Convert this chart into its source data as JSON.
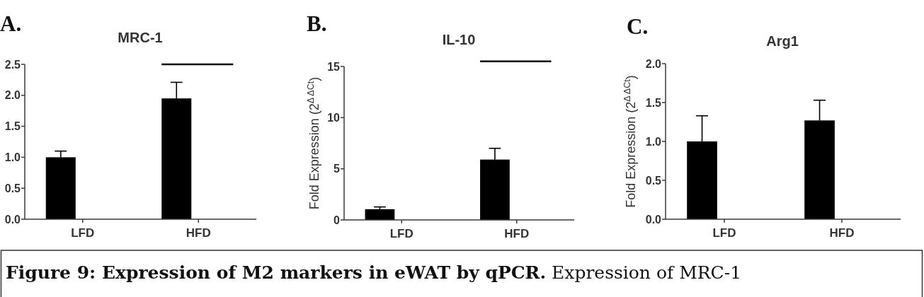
{
  "chart_data": [
    {
      "type": "bar",
      "title": "MRC-1",
      "annotations": [
        "A."
      ],
      "categories": [
        "LFD",
        "HFD"
      ],
      "values": [
        1.0,
        1.95
      ],
      "errors": [
        [
          1.0,
          1.1
        ],
        [
          1.95,
          2.21
        ]
      ],
      "color": "#000000",
      "ylim": [
        0,
        2.5
      ],
      "yticks": [
        {
          "value": 0,
          "label": "0.0"
        },
        {
          "value": 0.5,
          "label": "0.5"
        },
        {
          "value": 1,
          "label": "1.0"
        },
        {
          "value": 1.5,
          "label": "1.5"
        },
        {
          "value": 2,
          "label": "2.0"
        },
        {
          "value": 2.5,
          "label": "2.5"
        }
      ],
      "ref_lines": [
        {
          "axis": "y",
          "value": 2.5,
          "color": "#000000"
        }
      ]
    },
    {
      "type": "bar",
      "title": "IL-10",
      "annotations": [
        "B."
      ],
      "ylabel": "Fold Expression (2$^{Δ ΔCt}$)",
      "categories": [
        "LFD",
        "HFD"
      ],
      "values": [
        1.05,
        5.9
      ],
      "errors": [
        [
          1.05,
          1.27
        ],
        [
          5.9,
          7.0
        ]
      ],
      "color": "#000000",
      "ylim": [
        0,
        15
      ],
      "yticks": [
        0,
        5,
        10,
        15
      ],
      "ref_lines": [
        {
          "axis": "y",
          "value": 15.5,
          "color": "#000000"
        }
      ]
    },
    {
      "type": "bar",
      "title": "Arg1",
      "annotations": [
        "C."
      ],
      "ylabel": "Fold Expression (2$^{Δ ΔCt}$)",
      "categories": [
        "LFD",
        "HFD"
      ],
      "values": [
        1.0,
        1.27
      ],
      "errors": [
        [
          1.0,
          1.33
        ],
        [
          1.27,
          1.53
        ]
      ],
      "color": "#000000",
      "ylim": [
        0,
        2
      ],
      "yticks": [
        {
          "value": 0,
          "label": "0.0"
        },
        {
          "value": 0.5,
          "label": "0.5"
        },
        {
          "value": 1,
          "label": "1.0"
        },
        {
          "value": 1.5,
          "label": "1.5"
        },
        {
          "value": 2,
          "label": "2.0"
        }
      ]
    },
    {
      "type": "other",
      "annotations": [
        "Figure 9: Expression of M2 markers in eWAT by qPCR.",
        "Expression of MRC-1"
      ]
    }
  ]
}
